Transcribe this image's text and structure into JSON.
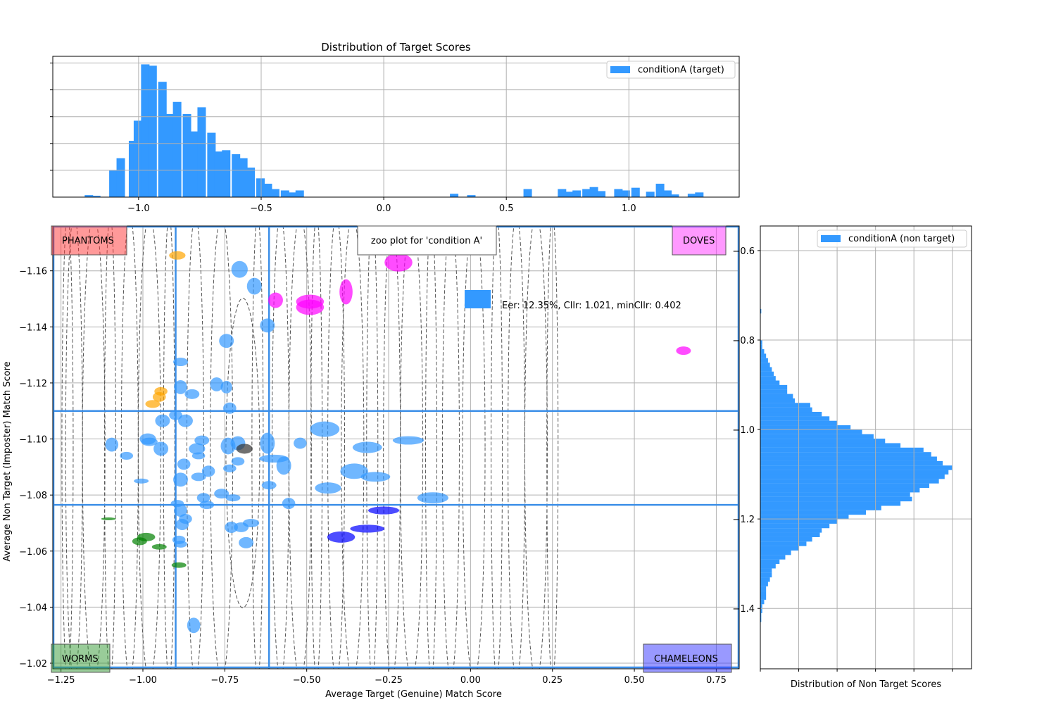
{
  "chart_data": [
    {
      "id": "target_hist",
      "type": "bar",
      "title": "Distribution of Target Scores",
      "xlim": [
        -1.35,
        1.45
      ],
      "ylim": [
        0,
        1.05
      ],
      "x_ticks": [
        -1.0,
        -0.5,
        0.0,
        0.5,
        1.0
      ],
      "x_tick_labels": [
        "−1.0",
        "−0.5",
        "0.0",
        "0.5",
        "1.0"
      ],
      "y_ticks": [
        0.2,
        0.4,
        0.6,
        0.8,
        1.0
      ],
      "grid": true,
      "legend": {
        "position": "top-right",
        "entries": [
          "conditionA (target)"
        ]
      },
      "series": [
        {
          "name": "conditionA (target)",
          "color": "#3399FF",
          "bin_width": 0.0333,
          "bin_starts": [
            -1.22,
            -1.19,
            -1.12,
            -1.09,
            -1.04,
            -1.02,
            -0.99,
            -0.96,
            -0.92,
            -0.89,
            -0.86,
            -0.82,
            -0.79,
            -0.76,
            -0.72,
            -0.69,
            -0.66,
            -0.62,
            -0.59,
            -0.56,
            -0.52,
            -0.49,
            -0.46,
            -0.42,
            -0.39,
            -0.36,
            0.27,
            0.34,
            0.57,
            0.71,
            0.74,
            0.77,
            0.81,
            0.84,
            0.87,
            0.94,
            0.97,
            1.01,
            1.07,
            1.11,
            1.14,
            1.17,
            1.24,
            1.27
          ],
          "values": [
            0.015,
            0.01,
            0.2,
            0.29,
            0.42,
            0.57,
            0.99,
            0.98,
            0.86,
            0.62,
            0.71,
            0.62,
            0.49,
            0.67,
            0.48,
            0.34,
            0.35,
            0.32,
            0.29,
            0.22,
            0.14,
            0.1,
            0.06,
            0.05,
            0.035,
            0.05,
            0.025,
            0.015,
            0.06,
            0.06,
            0.04,
            0.05,
            0.06,
            0.075,
            0.045,
            0.06,
            0.05,
            0.07,
            0.04,
            0.1,
            0.05,
            0.02,
            0.025,
            0.035
          ]
        }
      ]
    },
    {
      "id": "zoo_plot",
      "type": "scatter",
      "title": "zoo plot for 'condition A'",
      "xlabel": "Average Target (Genuine) Match Score",
      "ylabel": "Average Non Target (Imposter) Match Score",
      "xlim": [
        -1.275,
        0.82
      ],
      "ylim": [
        -1.018,
        -1.176
      ],
      "y_inverted": true,
      "x_ticks": [
        -1.25,
        -1.0,
        -0.75,
        -0.5,
        -0.25,
        0.0,
        0.25,
        0.5,
        0.75
      ],
      "x_tick_labels": [
        "−1.25",
        "−1.00",
        "−0.75",
        "−0.50",
        "−0.25",
        "0.00",
        "0.25",
        "0.50",
        "0.75"
      ],
      "y_ticks": [
        -1.16,
        -1.14,
        -1.12,
        -1.1,
        -1.08,
        -1.06,
        -1.04,
        -1.02
      ],
      "y_tick_labels": [
        "−1.16",
        "−1.14",
        "−1.12",
        "−1.10",
        "−1.08",
        "−1.06",
        "−1.04",
        "−1.02"
      ],
      "grid": true,
      "thresholds": {
        "x_low": -0.9,
        "x_high": -0.615,
        "y_low": -1.0765,
        "y_high": -1.11
      },
      "quadrant_labels": [
        {
          "text": "PHANTOMS",
          "position": "top-left",
          "color": "#FF3333"
        },
        {
          "text": "DOVES",
          "position": "top-right",
          "color": "#FF33FF"
        },
        {
          "text": "WORMS",
          "position": "bottom-left",
          "color": "#339933"
        },
        {
          "text": "CHAMELEONS",
          "position": "bottom-right",
          "color": "#3333FF"
        }
      ],
      "annotation": "Eer: 12.35%, Cllr: 1.021, minCllr: 0.402",
      "colors": {
        "normal": "#3399FF",
        "phantom": "#FFA500",
        "dove": "#FF00FF",
        "worm": "#008000",
        "chameleon": "#0000FF",
        "other": "#333333",
        "threshold_line": "#3C8FE8",
        "contour": "#555555"
      },
      "contour_centers_x": [
        -1.23,
        -1.21,
        -1.15,
        -1.1,
        -1.04,
        -0.98,
        -0.92,
        -0.84,
        -0.76,
        -0.65,
        -0.58,
        -0.52,
        -0.47,
        -0.41,
        -0.36,
        -0.3,
        -0.24,
        -0.18,
        -0.12,
        -0.06,
        0.01,
        0.08,
        0.14,
        0.2,
        0.25
      ],
      "points": [
        {
          "x": -0.895,
          "y": -1.1655,
          "w": 0.05,
          "h": 0.003,
          "cat": "phantom"
        },
        {
          "x": -0.945,
          "y": -1.117,
          "w": 0.04,
          "h": 0.003,
          "cat": "phantom"
        },
        {
          "x": -0.95,
          "y": -1.115,
          "w": 0.04,
          "h": 0.0035,
          "cat": "phantom"
        },
        {
          "x": -0.97,
          "y": -1.1125,
          "w": 0.045,
          "h": 0.0028,
          "cat": "phantom"
        },
        {
          "x": -0.705,
          "y": -1.1605,
          "w": 0.05,
          "h": 0.006,
          "cat": "normal"
        },
        {
          "x": -0.66,
          "y": -1.1545,
          "w": 0.045,
          "h": 0.006,
          "cat": "normal"
        },
        {
          "x": -0.62,
          "y": -1.1405,
          "w": 0.045,
          "h": 0.005,
          "cat": "normal"
        },
        {
          "x": -0.745,
          "y": -1.135,
          "w": 0.045,
          "h": 0.005,
          "cat": "normal"
        },
        {
          "x": -0.885,
          "y": -1.1275,
          "w": 0.045,
          "h": 0.003,
          "cat": "normal"
        },
        {
          "x": -0.885,
          "y": -1.1185,
          "w": 0.04,
          "h": 0.005,
          "cat": "normal"
        },
        {
          "x": -0.85,
          "y": -1.116,
          "w": 0.045,
          "h": 0.0035,
          "cat": "normal"
        },
        {
          "x": -0.775,
          "y": -1.1195,
          "w": 0.04,
          "h": 0.005,
          "cat": "normal"
        },
        {
          "x": -0.745,
          "y": -1.1185,
          "w": 0.035,
          "h": 0.0045,
          "cat": "normal"
        },
        {
          "x": -0.735,
          "y": -1.111,
          "w": 0.04,
          "h": 0.004,
          "cat": "normal"
        },
        {
          "x": -0.9,
          "y": -1.1085,
          "w": 0.04,
          "h": 0.0035,
          "cat": "normal"
        },
        {
          "x": -0.94,
          "y": -1.1065,
          "w": 0.045,
          "h": 0.0045,
          "cat": "normal"
        },
        {
          "x": -0.87,
          "y": -1.1065,
          "w": 0.045,
          "h": 0.0045,
          "cat": "normal"
        },
        {
          "x": -0.445,
          "y": -1.1035,
          "w": 0.09,
          "h": 0.0055,
          "cat": "normal"
        },
        {
          "x": -1.095,
          "y": -1.098,
          "w": 0.04,
          "h": 0.005,
          "cat": "normal"
        },
        {
          "x": -0.98,
          "y": -1.099,
          "w": 0.05,
          "h": 0.003,
          "cat": "normal"
        },
        {
          "x": -0.985,
          "y": -1.1,
          "w": 0.05,
          "h": 0.004,
          "cat": "normal"
        },
        {
          "x": -0.945,
          "y": -1.0965,
          "w": 0.045,
          "h": 0.005,
          "cat": "normal"
        },
        {
          "x": -0.82,
          "y": -1.0995,
          "w": 0.045,
          "h": 0.0035,
          "cat": "normal"
        },
        {
          "x": -0.835,
          "y": -1.0965,
          "w": 0.05,
          "h": 0.004,
          "cat": "normal"
        },
        {
          "x": -0.74,
          "y": -1.0975,
          "w": 0.045,
          "h": 0.006,
          "cat": "normal"
        },
        {
          "x": -0.71,
          "y": -1.0985,
          "w": 0.045,
          "h": 0.005,
          "cat": "normal"
        },
        {
          "x": -0.62,
          "y": -1.0985,
          "w": 0.045,
          "h": 0.0075,
          "cat": "normal"
        },
        {
          "x": -0.52,
          "y": -1.0985,
          "w": 0.04,
          "h": 0.004,
          "cat": "normal"
        },
        {
          "x": -0.315,
          "y": -1.097,
          "w": 0.09,
          "h": 0.004,
          "cat": "normal"
        },
        {
          "x": -0.19,
          "y": -1.0995,
          "w": 0.095,
          "h": 0.003,
          "cat": "normal"
        },
        {
          "x": -1.05,
          "y": -1.094,
          "w": 0.04,
          "h": 0.0028,
          "cat": "normal"
        },
        {
          "x": -0.875,
          "y": -1.091,
          "w": 0.04,
          "h": 0.004,
          "cat": "normal"
        },
        {
          "x": -0.83,
          "y": -1.094,
          "w": 0.04,
          "h": 0.0025,
          "cat": "normal"
        },
        {
          "x": -0.8,
          "y": -1.0885,
          "w": 0.04,
          "h": 0.004,
          "cat": "normal"
        },
        {
          "x": -0.71,
          "y": -1.092,
          "w": 0.04,
          "h": 0.003,
          "cat": "normal"
        },
        {
          "x": -0.735,
          "y": -1.0895,
          "w": 0.04,
          "h": 0.0028,
          "cat": "normal"
        },
        {
          "x": -0.6,
          "y": -1.093,
          "w": 0.09,
          "h": 0.0028,
          "cat": "normal"
        },
        {
          "x": -0.57,
          "y": -1.0905,
          "w": 0.045,
          "h": 0.0065,
          "cat": "normal"
        },
        {
          "x": -0.355,
          "y": -1.0885,
          "w": 0.085,
          "h": 0.0055,
          "cat": "normal"
        },
        {
          "x": -0.29,
          "y": -1.0865,
          "w": 0.09,
          "h": 0.0035,
          "cat": "normal"
        },
        {
          "x": -1.005,
          "y": -1.085,
          "w": 0.045,
          "h": 0.0018,
          "cat": "normal"
        },
        {
          "x": -0.885,
          "y": -1.0855,
          "w": 0.045,
          "h": 0.005,
          "cat": "normal"
        },
        {
          "x": -0.83,
          "y": -1.0865,
          "w": 0.045,
          "h": 0.003,
          "cat": "normal"
        },
        {
          "x": -0.615,
          "y": -1.0835,
          "w": 0.045,
          "h": 0.003,
          "cat": "normal"
        },
        {
          "x": -0.435,
          "y": -1.0825,
          "w": 0.08,
          "h": 0.004,
          "cat": "normal"
        },
        {
          "x": -0.76,
          "y": -1.0805,
          "w": 0.045,
          "h": 0.0035,
          "cat": "normal"
        },
        {
          "x": -0.725,
          "y": -1.079,
          "w": 0.045,
          "h": 0.0025,
          "cat": "normal"
        },
        {
          "x": -0.815,
          "y": -1.079,
          "w": 0.04,
          "h": 0.0035,
          "cat": "normal"
        },
        {
          "x": -0.895,
          "y": -1.077,
          "w": 0.04,
          "h": 0.0025,
          "cat": "normal"
        },
        {
          "x": -0.885,
          "y": -1.0745,
          "w": 0.04,
          "h": 0.0045,
          "cat": "normal"
        },
        {
          "x": -0.805,
          "y": -1.0765,
          "w": 0.045,
          "h": 0.003,
          "cat": "normal"
        },
        {
          "x": -0.555,
          "y": -1.077,
          "w": 0.04,
          "h": 0.004,
          "cat": "normal"
        },
        {
          "x": -0.115,
          "y": -1.079,
          "w": 0.095,
          "h": 0.004,
          "cat": "normal"
        },
        {
          "x": -0.87,
          "y": -1.0715,
          "w": 0.04,
          "h": 0.0035,
          "cat": "normal"
        },
        {
          "x": -0.88,
          "y": -1.0695,
          "w": 0.04,
          "h": 0.004,
          "cat": "normal"
        },
        {
          "x": -0.73,
          "y": -1.0685,
          "w": 0.04,
          "h": 0.004,
          "cat": "normal"
        },
        {
          "x": -0.7,
          "y": -1.0685,
          "w": 0.045,
          "h": 0.0035,
          "cat": "normal"
        },
        {
          "x": -0.67,
          "y": -1.07,
          "w": 0.05,
          "h": 0.003,
          "cat": "normal"
        },
        {
          "x": -0.885,
          "y": -1.0625,
          "w": 0.04,
          "h": 0.0025,
          "cat": "normal"
        },
        {
          "x": -0.89,
          "y": -1.064,
          "w": 0.04,
          "h": 0.003,
          "cat": "normal"
        },
        {
          "x": -0.685,
          "y": -1.063,
          "w": 0.045,
          "h": 0.004,
          "cat": "normal"
        },
        {
          "x": -0.845,
          "y": -1.0335,
          "w": 0.04,
          "h": 0.0055,
          "cat": "normal"
        },
        {
          "x": -0.22,
          "y": -1.163,
          "w": 0.085,
          "h": 0.0065,
          "cat": "dove"
        },
        {
          "x": -0.595,
          "y": -1.1495,
          "w": 0.045,
          "h": 0.0055,
          "cat": "dove"
        },
        {
          "x": -0.49,
          "y": -1.149,
          "w": 0.085,
          "h": 0.005,
          "cat": "dove"
        },
        {
          "x": -0.49,
          "y": -1.147,
          "w": 0.085,
          "h": 0.0055,
          "cat": "dove"
        },
        {
          "x": -0.38,
          "y": -1.1525,
          "w": 0.04,
          "h": 0.009,
          "cat": "dove"
        },
        {
          "x": 0.65,
          "y": -1.1315,
          "w": 0.045,
          "h": 0.003,
          "cat": "dove"
        },
        {
          "x": -1.105,
          "y": -1.0715,
          "w": 0.045,
          "h": 0.001,
          "cat": "worm"
        },
        {
          "x": -0.99,
          "y": -1.065,
          "w": 0.055,
          "h": 0.003,
          "cat": "worm"
        },
        {
          "x": -1.01,
          "y": -1.0635,
          "w": 0.045,
          "h": 0.0028,
          "cat": "worm"
        },
        {
          "x": -0.95,
          "y": -1.0615,
          "w": 0.045,
          "h": 0.002,
          "cat": "worm"
        },
        {
          "x": -0.89,
          "y": -1.055,
          "w": 0.045,
          "h": 0.002,
          "cat": "worm"
        },
        {
          "x": -0.265,
          "y": -1.0745,
          "w": 0.095,
          "h": 0.0028,
          "cat": "chameleon"
        },
        {
          "x": -0.315,
          "y": -1.068,
          "w": 0.105,
          "h": 0.0028,
          "cat": "chameleon"
        },
        {
          "x": -0.395,
          "y": -1.065,
          "w": 0.085,
          "h": 0.004,
          "cat": "chameleon"
        },
        {
          "x": -0.69,
          "y": -1.0965,
          "w": 0.05,
          "h": 0.0035,
          "cat": "other"
        }
      ]
    },
    {
      "id": "nontarget_hist",
      "type": "bar",
      "orientation": "horizontal",
      "xlabel": "Distribution of Non Target Scores",
      "ylim": [
        -1.535,
        -0.545
      ],
      "y_inverted": true,
      "y_ticks": [
        -0.6,
        -0.8,
        -1.0,
        -1.2,
        -1.4
      ],
      "y_tick_labels": [
        "−0.6",
        "−0.8",
        "−1.0",
        "−1.2",
        "−1.4"
      ],
      "xlim": [
        0,
        1.1
      ],
      "x_ticks": [
        0,
        0.2,
        0.4,
        0.6,
        0.8,
        1.0
      ],
      "grid": true,
      "legend": {
        "position": "top-right",
        "entries": [
          "conditionA (non target)"
        ]
      },
      "series": [
        {
          "name": "conditionA (non target)",
          "color": "#3399FF",
          "bin_width": 0.0095,
          "bin_starts": [
            -1.43,
            -1.42,
            -1.41,
            -1.4,
            -1.39,
            -1.38,
            -1.37,
            -1.36,
            -1.35,
            -1.34,
            -1.33,
            -1.32,
            -1.31,
            -1.3,
            -1.29,
            -1.28,
            -1.27,
            -1.26,
            -1.25,
            -1.24,
            -1.23,
            -1.22,
            -1.21,
            -1.2,
            -1.19,
            -1.18,
            -1.17,
            -1.16,
            -1.15,
            -1.14,
            -1.13,
            -1.12,
            -1.11,
            -1.1,
            -1.09,
            -1.08,
            -1.07,
            -1.06,
            -1.05,
            -1.04,
            -1.03,
            -1.02,
            -1.01,
            -1.0,
            -0.99,
            -0.98,
            -0.97,
            -0.96,
            -0.95,
            -0.94,
            -0.93,
            -0.92,
            -0.91,
            -0.9,
            -0.89,
            -0.88,
            -0.87,
            -0.86,
            -0.85,
            -0.84,
            -0.83,
            -0.82,
            -0.81,
            -0.74
          ],
          "values": [
            0.005,
            0.005,
            0.01,
            0.01,
            0.02,
            0.03,
            0.03,
            0.03,
            0.04,
            0.05,
            0.06,
            0.06,
            0.08,
            0.1,
            0.13,
            0.16,
            0.2,
            0.24,
            0.27,
            0.31,
            0.32,
            0.36,
            0.4,
            0.46,
            0.55,
            0.63,
            0.73,
            0.79,
            0.78,
            0.83,
            0.88,
            0.93,
            0.96,
            0.98,
            1.0,
            0.95,
            0.92,
            0.89,
            0.85,
            0.73,
            0.65,
            0.59,
            0.53,
            0.47,
            0.4,
            0.36,
            0.32,
            0.27,
            0.26,
            0.18,
            0.17,
            0.14,
            0.14,
            0.1,
            0.08,
            0.07,
            0.06,
            0.05,
            0.04,
            0.03,
            0.02,
            0.01,
            0.01,
            0.005
          ]
        }
      ]
    }
  ]
}
